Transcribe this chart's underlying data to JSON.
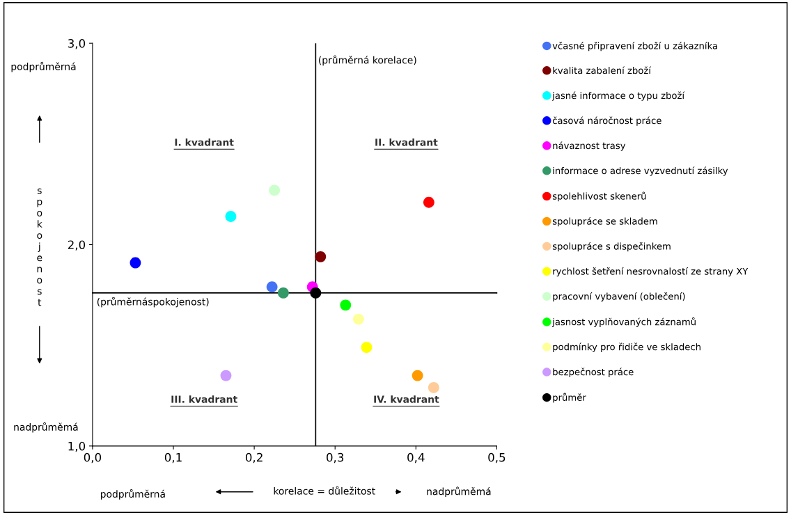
{
  "chart_data": {
    "type": "scatter",
    "xlabel": "korelace = důležitost",
    "ylabel": "spokojenost",
    "xlim": [
      0,
      0.5
    ],
    "ylim": [
      1,
      3
    ],
    "xticks": [
      {
        "value": 0,
        "label": "0,0"
      },
      {
        "value": 0.1,
        "label": "0,1"
      },
      {
        "value": 0.2,
        "label": "0,2"
      },
      {
        "value": 0.3,
        "label": "0,3"
      },
      {
        "value": 0.4,
        "label": "0,4"
      },
      {
        "value": 0.5,
        "label": "0,5"
      }
    ],
    "yticks": [
      {
        "value": 1,
        "label": "1,0"
      },
      {
        "value": 2,
        "label": "2,0"
      },
      {
        "value": 3,
        "label": "3,0"
      }
    ],
    "grid": false,
    "legend": "right",
    "marker": "circle",
    "ref_lines": [
      {
        "axis": "x",
        "value": 0.276,
        "label": "(průměrná korelace)",
        "color": "#000000"
      },
      {
        "axis": "y",
        "value": 1.76,
        "label": "(průměrnáspokojenost)",
        "color": "#000000"
      }
    ],
    "annotations": [
      "I. kvadrant",
      "II. kvadrant",
      "III. kvadrant",
      "IV. kvadrant",
      "podprůměrná",
      "nadprůměmá",
      "podprůměrná",
      "nadprůměmá"
    ],
    "series": [
      {
        "name": "včasné připravení zboží u zákazníka",
        "color": "#4472f4",
        "x": [
          0.222
        ],
        "values": [
          1.79
        ]
      },
      {
        "name": "kvalita zabalení zboží",
        "color": "#7f0000",
        "x": [
          0.282
        ],
        "values": [
          1.94
        ]
      },
      {
        "name": "jasné informace o typu zboží",
        "color": "#00ffff",
        "x": [
          0.171
        ],
        "values": [
          2.14
        ]
      },
      {
        "name": "časová náročnost práce",
        "color": "#0000ff",
        "x": [
          0.053
        ],
        "values": [
          1.91
        ]
      },
      {
        "name": "návaznost trasy",
        "color": "#ff00ff",
        "x": [
          0.272
        ],
        "values": [
          1.79
        ]
      },
      {
        "name": "informace o adrese vyzvednutí zásilky",
        "color": "#339966",
        "x": [
          0.236
        ],
        "values": [
          1.76
        ]
      },
      {
        "name": "spolehlivost skenerů",
        "color": "#ff0000",
        "x": [
          0.416
        ],
        "values": [
          2.21
        ]
      },
      {
        "name": "spolupráce se skladem",
        "color": "#ff9900",
        "x": [
          0.402
        ],
        "values": [
          1.35
        ]
      },
      {
        "name": "spolupráce s dispečinkem",
        "color": "#ffcc99",
        "x": [
          0.422
        ],
        "values": [
          1.29
        ]
      },
      {
        "name": "rychlost šetření nesrovnalostí ze strany XY",
        "color": "#ffff00",
        "x": [
          0.339
        ],
        "values": [
          1.49
        ]
      },
      {
        "name": "pracovní vybavení (oblečení)",
        "color": "#ccffcc",
        "x": [
          0.225
        ],
        "values": [
          2.27
        ]
      },
      {
        "name": "jasnost vyplňovaných záznamů",
        "color": "#00ff00",
        "x": [
          0.313
        ],
        "values": [
          1.7
        ]
      },
      {
        "name": "podmínky pro řidiče ve skladech",
        "color": "#ffff99",
        "x": [
          0.329
        ],
        "values": [
          1.63
        ]
      },
      {
        "name": "bezpečnost práce",
        "color": "#cc99ff",
        "x": [
          0.165
        ],
        "values": [
          1.35
        ]
      },
      {
        "name": "průměr",
        "color": "#000000",
        "x": [
          0.276
        ],
        "values": [
          1.76
        ]
      }
    ]
  }
}
